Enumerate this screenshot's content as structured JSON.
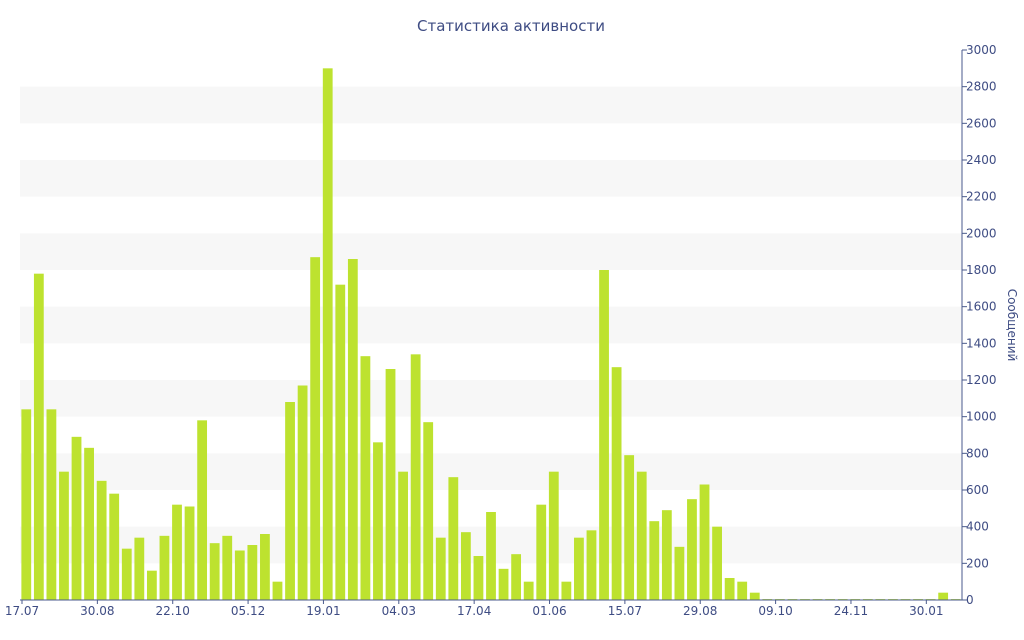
{
  "chart_data": {
    "type": "bar",
    "title": "Статистика активности",
    "ylabel": "Сообщений",
    "ylim": [
      0,
      3000
    ],
    "y_ticks": [
      0,
      200,
      400,
      600,
      800,
      1000,
      1200,
      1400,
      1600,
      1800,
      2000,
      2200,
      2400,
      2600,
      2800,
      3000
    ],
    "x_tick_labels": [
      {
        "label": "17.07",
        "index": 0
      },
      {
        "label": "30.08",
        "index": 6
      },
      {
        "label": "22.10",
        "index": 12
      },
      {
        "label": "05.12",
        "index": 18
      },
      {
        "label": "19.01",
        "index": 24
      },
      {
        "label": "04.03",
        "index": 30
      },
      {
        "label": "17.04",
        "index": 36
      },
      {
        "label": "01.06",
        "index": 42
      },
      {
        "label": "15.07",
        "index": 48
      },
      {
        "label": "29.08",
        "index": 54
      },
      {
        "label": "09.10",
        "index": 60
      },
      {
        "label": "24.11",
        "index": 66
      },
      {
        "label": "30.01",
        "index": 72
      }
    ],
    "values": [
      1040,
      1780,
      1040,
      700,
      890,
      830,
      650,
      580,
      280,
      340,
      160,
      350,
      520,
      510,
      980,
      310,
      350,
      270,
      300,
      360,
      100,
      1080,
      1170,
      1870,
      2900,
      1720,
      1860,
      1330,
      860,
      1260,
      700,
      1340,
      970,
      340,
      670,
      370,
      240,
      480,
      170,
      250,
      100,
      520,
      700,
      100,
      340,
      380,
      1800,
      1270,
      790,
      700,
      430,
      490,
      290,
      550,
      630,
      400,
      120,
      100,
      40,
      5,
      5,
      5,
      5,
      5,
      5,
      5,
      5,
      5,
      5,
      5,
      5,
      5,
      5,
      40,
      5
    ],
    "bar_color": "#bde22f",
    "band_color": "#f7f7f7",
    "text_color": "#3e4c83",
    "grid": "alternating bands",
    "y_axis_position": "right"
  }
}
